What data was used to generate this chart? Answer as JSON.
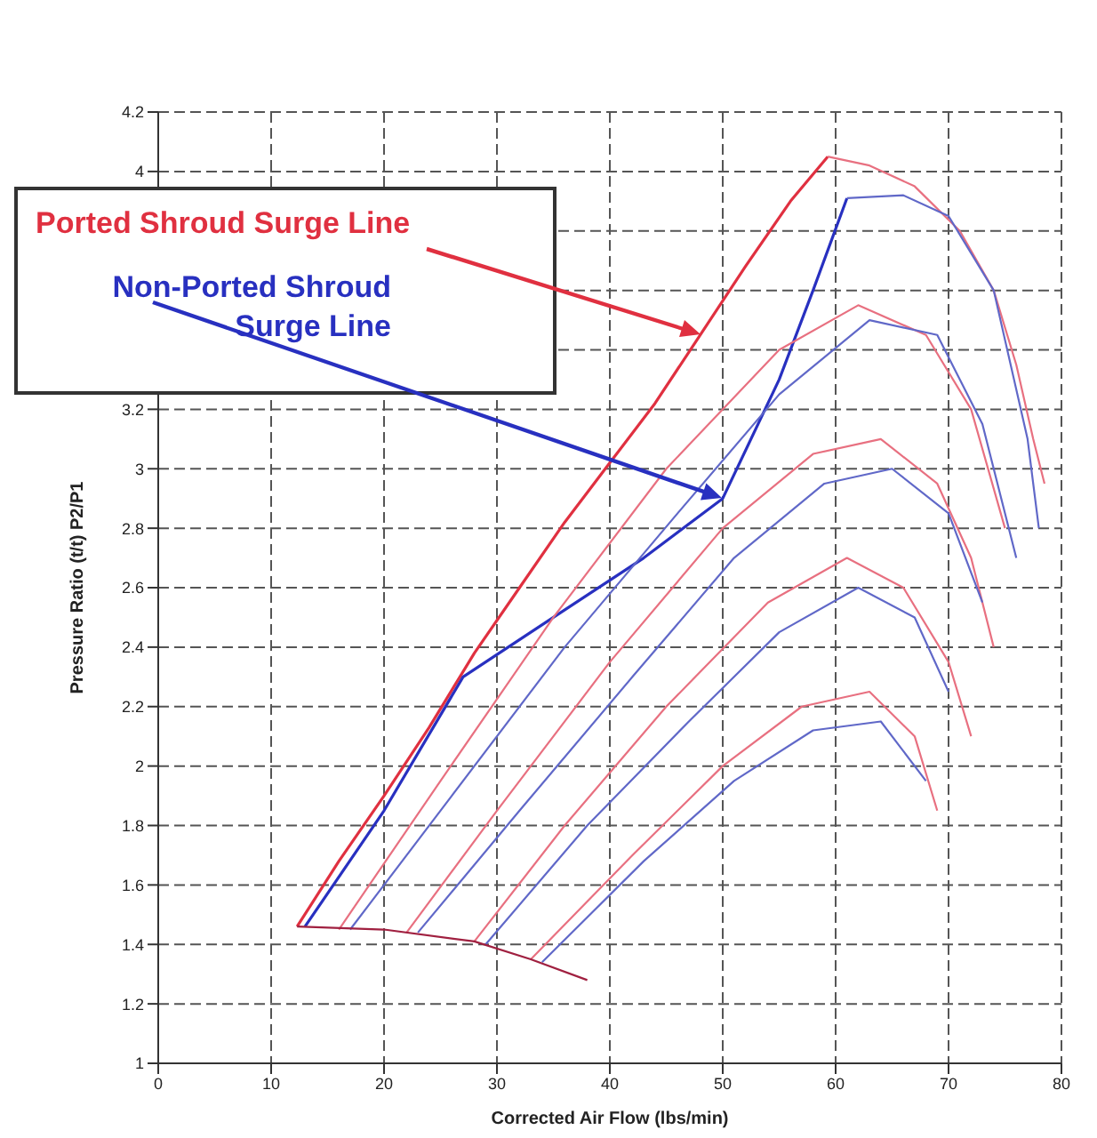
{
  "chart_data": {
    "type": "line",
    "xlabel": "Corrected Air Flow (lbs/min)",
    "ylabel": "Pressure Ratio (t/t) P2/P1",
    "xlim": [
      0,
      80
    ],
    "xticks": [
      0,
      10,
      20,
      30,
      40,
      50,
      60,
      70,
      80
    ],
    "ylim": [
      1,
      4.2
    ],
    "yticks": [
      1,
      1.2,
      1.4,
      1.6,
      1.8,
      2,
      2.2,
      2.4,
      2.6,
      2.8,
      3,
      3.2,
      {
        "value": 3.4,
        "label": null
      },
      {
        "value": 3.6,
        "label": null
      },
      {
        "value": 3.8,
        "label": null
      },
      4,
      4.2
    ],
    "grid": true,
    "series": [
      {
        "color": "#e03040",
        "x": [
          12.3,
          16,
          20,
          24,
          28,
          32,
          36,
          40,
          44,
          48,
          52,
          56,
          59.3
        ],
        "values": [
          1.46,
          1.68,
          1.9,
          2.13,
          2.38,
          2.6,
          2.82,
          3.02,
          3.22,
          3.45,
          3.68,
          3.9,
          4.05
        ]
      },
      {
        "color": "#2830c0",
        "x": [
          13,
          20,
          27,
          35,
          43,
          50,
          55,
          58,
          61
        ],
        "values": [
          1.46,
          1.85,
          2.3,
          2.5,
          2.7,
          2.9,
          3.3,
          3.6,
          3.91
        ]
      },
      {
        "color": "#e87080",
        "x": [
          59.3,
          63,
          67,
          71,
          74,
          76,
          77.5,
          78.5
        ],
        "values": [
          4.05,
          4.02,
          3.95,
          3.8,
          3.6,
          3.35,
          3.1,
          2.95
        ]
      },
      {
        "color": "#6068c8",
        "x": [
          61,
          66,
          70,
          74,
          77,
          78
        ],
        "values": [
          3.91,
          3.92,
          3.85,
          3.6,
          3.1,
          2.8
        ]
      },
      {
        "color": "#e87080",
        "x": [
          16,
          25,
          35,
          45,
          55,
          62,
          68,
          72,
          75
        ],
        "values": [
          1.45,
          1.95,
          2.5,
          3.0,
          3.4,
          3.55,
          3.45,
          3.2,
          2.8
        ]
      },
      {
        "color": "#e87080",
        "x": [
          22,
          30,
          40,
          50,
          58,
          64,
          69,
          72,
          74
        ],
        "values": [
          1.44,
          1.85,
          2.35,
          2.8,
          3.05,
          3.1,
          2.95,
          2.7,
          2.4
        ]
      },
      {
        "color": "#e87080",
        "x": [
          28,
          36,
          45,
          54,
          61,
          66,
          70,
          72
        ],
        "values": [
          1.41,
          1.8,
          2.2,
          2.55,
          2.7,
          2.6,
          2.35,
          2.1
        ]
      },
      {
        "color": "#e87080",
        "x": [
          33,
          42,
          50,
          57,
          63,
          67,
          69
        ],
        "values": [
          1.35,
          1.7,
          2.0,
          2.2,
          2.25,
          2.1,
          1.85
        ]
      },
      {
        "color": "#6068c8",
        "x": [
          17,
          26,
          36,
          46,
          55,
          63,
          69,
          73,
          76
        ],
        "values": [
          1.45,
          1.9,
          2.4,
          2.85,
          3.25,
          3.5,
          3.45,
          3.15,
          2.7
        ]
      },
      {
        "color": "#6068c8",
        "x": [
          23,
          32,
          42,
          51,
          59,
          65,
          70,
          73
        ],
        "values": [
          1.44,
          1.85,
          2.3,
          2.7,
          2.95,
          3.0,
          2.85,
          2.55
        ]
      },
      {
        "color": "#6068c8",
        "x": [
          29,
          38,
          47,
          55,
          62,
          67,
          70
        ],
        "values": [
          1.4,
          1.8,
          2.15,
          2.45,
          2.6,
          2.5,
          2.25
        ]
      },
      {
        "color": "#6068c8",
        "x": [
          34,
          43,
          51,
          58,
          64,
          68
        ],
        "values": [
          1.34,
          1.68,
          1.95,
          2.12,
          2.15,
          1.95
        ]
      },
      {
        "color": "#a02040",
        "x": [
          12.3,
          20,
          28,
          33,
          38
        ],
        "values": [
          1.46,
          1.45,
          1.41,
          1.35,
          1.28
        ]
      }
    ],
    "annotations": [
      "Ported Shroud Surge Line",
      "Non-Ported Shroud Surge Line"
    ]
  }
}
